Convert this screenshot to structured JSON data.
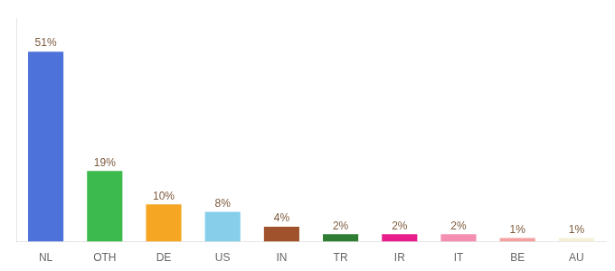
{
  "chart_data": {
    "type": "bar",
    "categories": [
      "NL",
      "OTH",
      "DE",
      "US",
      "IN",
      "TR",
      "IR",
      "IT",
      "BE",
      "AU"
    ],
    "values": [
      51,
      19,
      10,
      8,
      4,
      2,
      2,
      2,
      1,
      1
    ],
    "value_labels": [
      "51%",
      "19%",
      "10%",
      "8%",
      "4%",
      "2%",
      "2%",
      "2%",
      "1%",
      "1%"
    ],
    "colors": [
      "#4d72d9",
      "#3dba4e",
      "#f5a623",
      "#87ceeb",
      "#a0522d",
      "#2e7d32",
      "#e91e8c",
      "#f48fb1",
      "#f4a0a0",
      "#f5f0d8"
    ],
    "ylim": [
      0,
      60
    ],
    "data_labels": true,
    "tick_labels": "x",
    "grid": false
  }
}
